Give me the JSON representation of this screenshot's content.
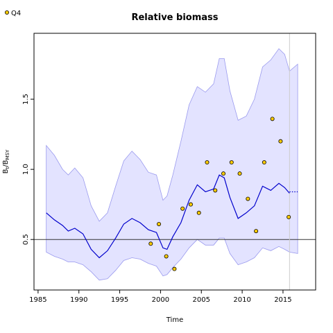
{
  "chart_data": {
    "type": "line",
    "title": "Relative biomass",
    "xlabel": "Time",
    "ylabel": {
      "base": "B",
      "sub1": "t",
      "mid": "/B",
      "sub2": "MSY"
    },
    "xlim": [
      1984.5,
      2019
    ],
    "ylim": [
      0.14,
      1.97
    ],
    "x_ticks": [
      1985,
      1990,
      1995,
      2000,
      2005,
      2010,
      2015
    ],
    "y_ticks": [
      0.5,
      1.0,
      1.5
    ],
    "x_tick_labels": [
      "1985",
      "1990",
      "1995",
      "2000",
      "2005",
      "2010",
      "2015"
    ],
    "y_tick_labels": [
      "0.5",
      "1.0",
      "1.5"
    ],
    "reference_line": 0.5,
    "last_obs_marker": 2015.8,
    "legend": {
      "position": "top-left",
      "label": "Q4"
    },
    "colors": {
      "estimate_line": "#0000cc",
      "band_fill": "#e3e3ff",
      "band_stroke": "#9a9aee",
      "points": "#ffcc00",
      "reference": "#333333",
      "marker_line": "#cccccc"
    },
    "series": [
      {
        "name": "estimate",
        "x": [
          1986,
          1987,
          1988,
          1988.7,
          1989.5,
          1990.5,
          1991.5,
          1992.5,
          1993.5,
          1994.5,
          1995.5,
          1996.5,
          1997.5,
          1998.5,
          1999.5,
          2000.3,
          2000.8,
          2001.5,
          2002.5,
          2003.5,
          2004.5,
          2005.5,
          2006.5,
          2007.2,
          2007.8,
          2008.5,
          2009.5,
          2010.5,
          2011.5,
          2012.5,
          2013.5,
          2014.5,
          2015.2,
          2015.8
        ],
        "y": [
          0.69,
          0.64,
          0.6,
          0.56,
          0.58,
          0.54,
          0.43,
          0.37,
          0.42,
          0.51,
          0.61,
          0.65,
          0.62,
          0.57,
          0.55,
          0.44,
          0.43,
          0.52,
          0.62,
          0.78,
          0.89,
          0.84,
          0.86,
          0.96,
          0.94,
          0.8,
          0.65,
          0.69,
          0.74,
          0.88,
          0.85,
          0.9,
          0.87,
          0.83
        ]
      },
      {
        "name": "projection",
        "x": [
          2015.8,
          2016.8
        ],
        "y": [
          0.84,
          0.84
        ]
      }
    ],
    "band": {
      "x": [
        1986,
        1987,
        1988,
        1988.7,
        1989.5,
        1990.5,
        1991.5,
        1992.5,
        1993.5,
        1994.5,
        1995.5,
        1996.5,
        1997.5,
        1998.5,
        1999.5,
        2000.3,
        2000.8,
        2001.5,
        2002.5,
        2003.5,
        2004.5,
        2005.5,
        2006.5,
        2007.2,
        2007.8,
        2008.5,
        2009.5,
        2010.5,
        2011.5,
        2012.5,
        2013.5,
        2014.5,
        2015.2,
        2015.8,
        2016.8
      ],
      "upper": [
        1.17,
        1.1,
        1.0,
        0.96,
        1.01,
        0.94,
        0.74,
        0.63,
        0.69,
        0.88,
        1.06,
        1.13,
        1.07,
        0.98,
        0.96,
        0.78,
        0.81,
        0.96,
        1.2,
        1.46,
        1.59,
        1.55,
        1.61,
        1.79,
        1.79,
        1.56,
        1.35,
        1.38,
        1.5,
        1.73,
        1.78,
        1.86,
        1.82,
        1.7,
        1.75
      ],
      "lower": [
        0.41,
        0.38,
        0.36,
        0.34,
        0.34,
        0.32,
        0.27,
        0.21,
        0.22,
        0.28,
        0.35,
        0.37,
        0.36,
        0.33,
        0.31,
        0.24,
        0.25,
        0.3,
        0.36,
        0.44,
        0.5,
        0.46,
        0.46,
        0.51,
        0.51,
        0.4,
        0.32,
        0.34,
        0.37,
        0.44,
        0.42,
        0.45,
        0.43,
        0.41,
        0.4
      ]
    },
    "points": {
      "name": "Q4",
      "x": [
        1998.8,
        1999.8,
        2000.7,
        2001.7,
        2002.7,
        2003.7,
        2004.7,
        2005.7,
        2006.7,
        2007.7,
        2008.7,
        2009.7,
        2010.7,
        2011.7,
        2012.7,
        2013.7,
        2014.7,
        2015.7
      ],
      "y": [
        0.47,
        0.61,
        0.38,
        0.29,
        0.72,
        0.75,
        0.69,
        1.05,
        0.85,
        0.97,
        1.05,
        0.97,
        0.79,
        0.56,
        1.05,
        1.36,
        1.2,
        0.66
      ]
    }
  }
}
